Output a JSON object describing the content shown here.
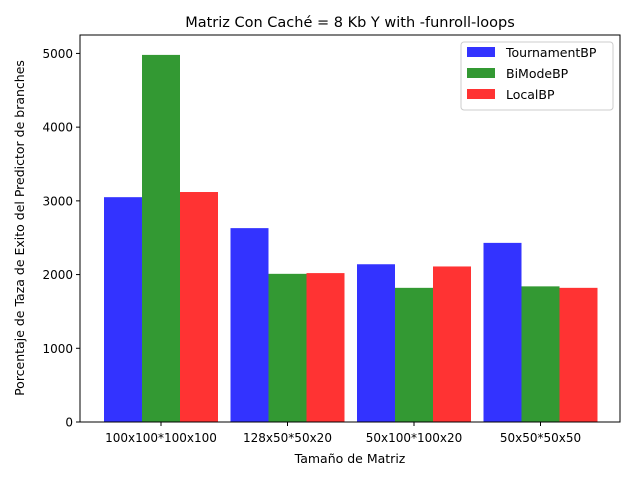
{
  "chart_data": {
    "type": "bar",
    "title": "Matriz Con Caché = 8 Kb Y  with -funroll-loops",
    "xlabel": "Tamaño de Matriz",
    "ylabel": "Porcentaje de Taza de Exito del Predictor de branches",
    "categories": [
      "100x100*100x100",
      "128x50*50x20",
      "50x100*100x20",
      "50x50*50x50"
    ],
    "ylim": [
      0,
      5250
    ],
    "yticks": [
      0,
      1000,
      2000,
      3000,
      4000,
      5000
    ],
    "grid": false,
    "legend_position": "top-right",
    "series": [
      {
        "name": "TournamentBP",
        "color": "#3333ff",
        "values": [
          3050,
          2630,
          2140,
          2430
        ]
      },
      {
        "name": "BiModeBP",
        "color": "#339933",
        "values": [
          4980,
          2010,
          1820,
          1840
        ]
      },
      {
        "name": "LocalBP",
        "color": "#ff3333",
        "values": [
          3120,
          2020,
          2110,
          1820
        ]
      }
    ]
  }
}
